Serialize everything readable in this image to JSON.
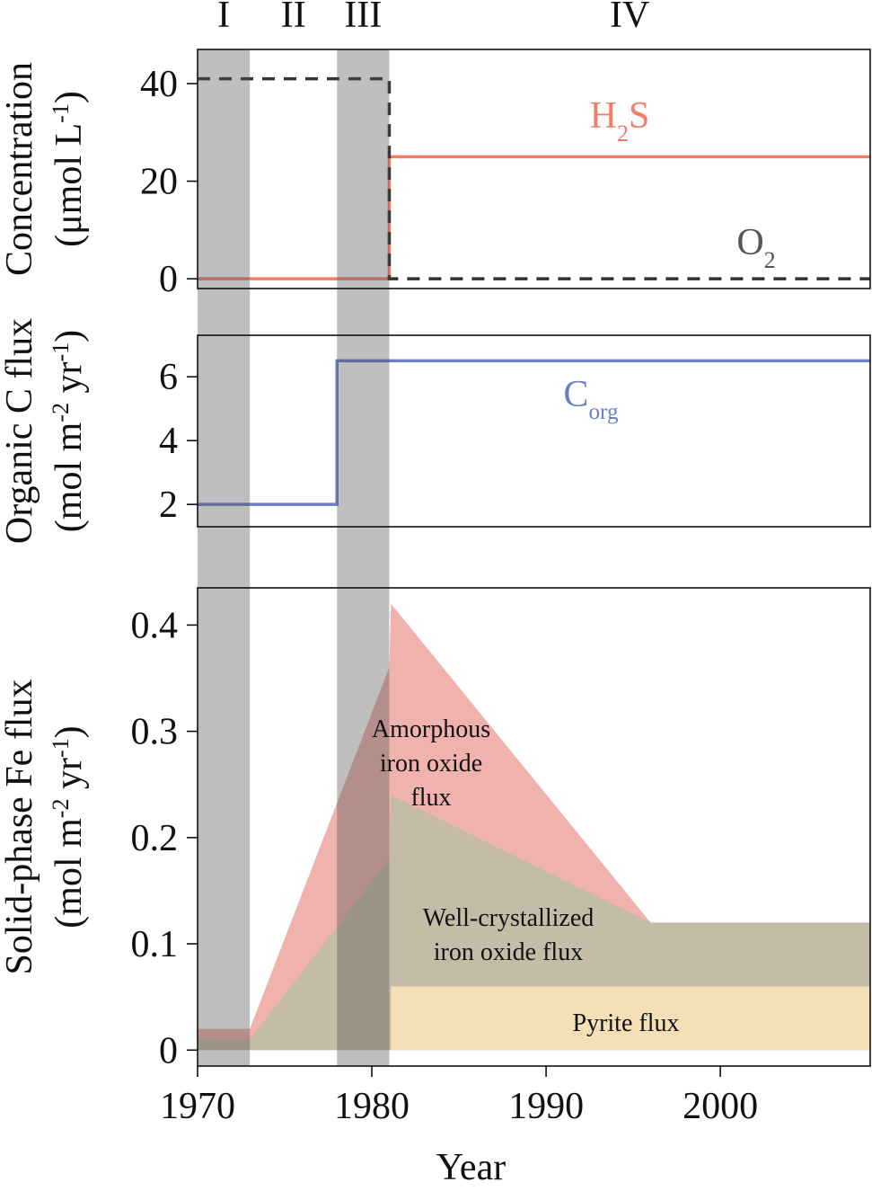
{
  "phases": [
    {
      "label": "I",
      "start": 1970,
      "end": 1973,
      "shaded": true
    },
    {
      "label": "II",
      "start": 1973,
      "end": 1978,
      "shaded": false
    },
    {
      "label": "III",
      "start": 1978,
      "end": 1981,
      "shaded": true
    },
    {
      "label": "IV",
      "start": 1981,
      "end": 2008.6,
      "shaded": false
    }
  ],
  "colors": {
    "shade": "#bdbdbd",
    "h2s": "#f07e68",
    "o2": "#333333",
    "corg": "#6a7fc4",
    "amorphous": "#e89189",
    "well_crystallized": "#b2c1a5",
    "pyrite": "#f9e2b8",
    "frame": "#111111"
  },
  "xaxis": {
    "label": "Year",
    "ticks": [
      1970,
      1980,
      1990,
      2000
    ],
    "range": [
      1970,
      2008.6
    ]
  },
  "chart_data": [
    {
      "type": "line",
      "panel": "concentration",
      "ylabel_line1": "Concentration",
      "ylabel_line2_main": "(μmol L",
      "ylabel_line2_sup": "-1",
      "ylabel_line2_end": ")",
      "ylim": [
        -2,
        47
      ],
      "yticks": [
        0,
        20,
        40
      ],
      "series": [
        {
          "key": "h2s",
          "label_main": "H",
          "label_sub": "2",
          "label_end": "S",
          "style": "solid",
          "x": [
            1970,
            1981,
            1981,
            2008.6
          ],
          "y": [
            0,
            0,
            25,
            25
          ]
        },
        {
          "key": "o2",
          "label_main": "O",
          "label_sub": "2",
          "label_end": "",
          "style": "dashed",
          "x": [
            1970,
            1981,
            1981,
            2008.6
          ],
          "y": [
            41,
            41,
            0,
            0
          ]
        }
      ]
    },
    {
      "type": "line",
      "panel": "organic_c_flux",
      "ylabel_line1": "Organic C flux",
      "ylabel_line2_main": "(mol m",
      "ylabel_line2_sup": "-2",
      "ylabel_line2_mid": " yr",
      "ylabel_line2_sup2": "-1",
      "ylabel_line2_end": ")",
      "ylim": [
        1.3,
        7.3
      ],
      "yticks": [
        2,
        4,
        6
      ],
      "series": [
        {
          "key": "corg",
          "label_main": "C",
          "label_sub": "org",
          "style": "solid",
          "x": [
            1970,
            1978,
            1978,
            2008.6
          ],
          "y": [
            2,
            2,
            6.5,
            6.5
          ]
        }
      ]
    },
    {
      "type": "area",
      "panel": "solid_phase_fe_flux",
      "ylabel_line1": "Solid-phase Fe flux",
      "ylabel_line2_main": "(mol m",
      "ylabel_line2_sup": "-2",
      "ylabel_line2_mid": " yr",
      "ylabel_line2_sup2": "-1",
      "ylabel_line2_end": ")",
      "ylim": [
        -0.015,
        0.435
      ],
      "yticks": [
        0,
        0.1,
        0.2,
        0.3,
        0.4
      ],
      "ytick_labels": [
        "0",
        "0.1",
        "0.2",
        "0.3",
        "0.4"
      ],
      "series": [
        {
          "key": "amorphous",
          "label_lines": [
            "Amorphous",
            "iron oxide",
            "flux"
          ],
          "x": [
            1970,
            1973,
            1981,
            1981.1,
            1996,
            2008.6
          ],
          "y": [
            0.02,
            0.02,
            0.36,
            0.42,
            0.12,
            0.12
          ]
        },
        {
          "key": "well_crystallized",
          "label_lines": [
            "Well-crystallized",
            "iron oxide flux"
          ],
          "x": [
            1970,
            1973,
            1981,
            1981.1,
            1996,
            2008.6
          ],
          "y": [
            0.01,
            0.01,
            0.18,
            0.24,
            0.12,
            0.12
          ]
        },
        {
          "key": "pyrite",
          "label_lines": [
            "Pyrite flux"
          ],
          "x": [
            1981.1,
            2008.6
          ],
          "y": [
            0.06,
            0.06
          ]
        }
      ]
    }
  ]
}
